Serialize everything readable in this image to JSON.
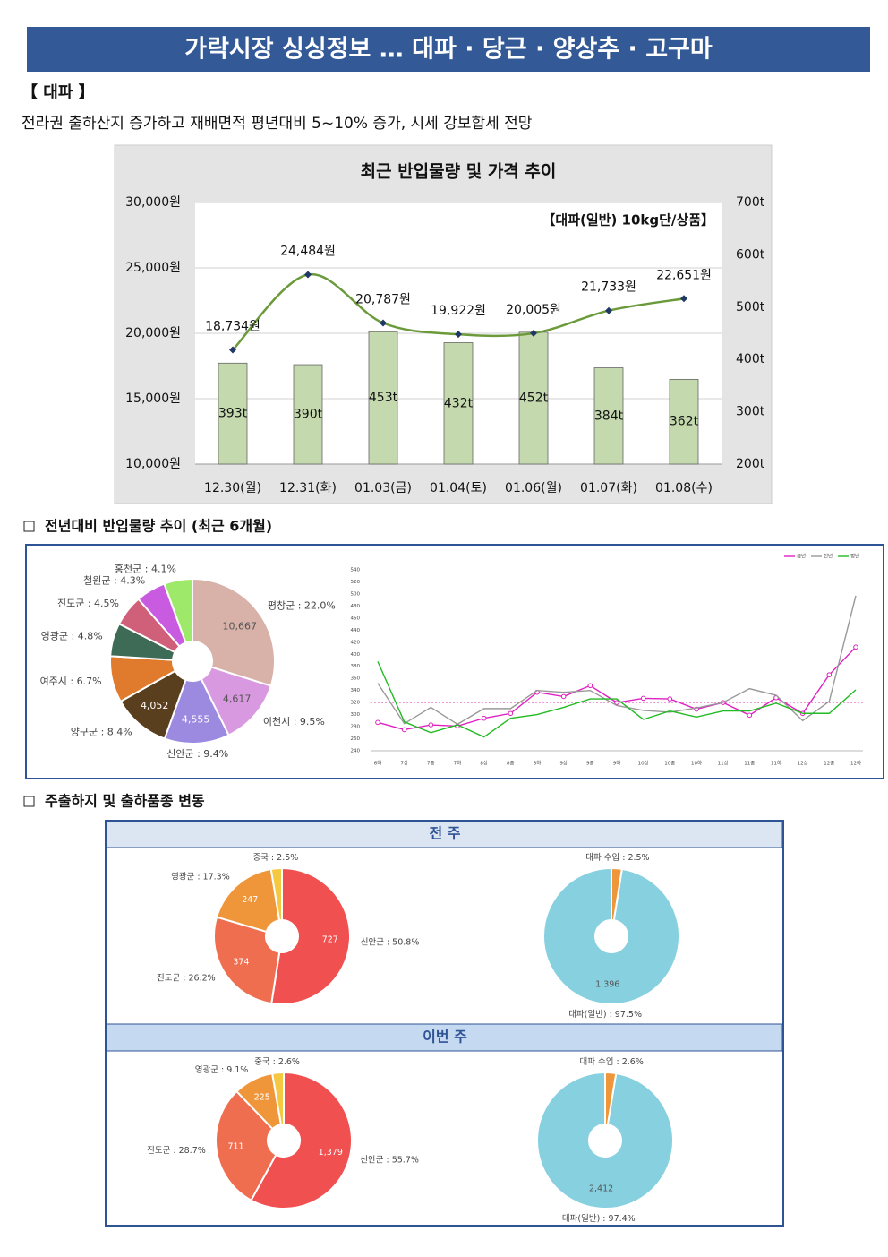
{
  "title": "가락시장 싱싱정보 … 대파 · 당근 · 양상추 · 고구마",
  "section_title": "【 대파 】",
  "summary": "전라권 출하산지 증가하고 재배면적 평년대비 5~10% 증가, 시세 강보합세 전망",
  "subsections": [
    "전년대비 반입물량 추이 (최근 6개월)",
    "주출하지 및 출하품종 변동"
  ],
  "panel_labels": [
    "전 주",
    "이번 주"
  ],
  "chart_data": [
    {
      "type": "combo",
      "title": "최근 반입물량 및 가격 추이",
      "annotation": "【대파(일반) 10kg단/상품】",
      "categories": [
        "12.30(월)",
        "12.31(화)",
        "01.03(금)",
        "01.04(토)",
        "01.06(월)",
        "01.07(화)",
        "01.08(수)"
      ],
      "series": [
        {
          "kind": "bar",
          "axis": "y2",
          "color": "#c4d9ae",
          "values": [
            393,
            390,
            453,
            432,
            452,
            384,
            362
          ],
          "value_labels": [
            "393t",
            "390t",
            "453t",
            "432t",
            "452t",
            "384t",
            "362t"
          ]
        },
        {
          "kind": "line",
          "axis": "y",
          "color": "#6b9a3a",
          "marker_color": "#1f3864",
          "values": [
            18734,
            24484,
            20787,
            19922,
            20005,
            21733,
            22651
          ],
          "value_labels": [
            "18,734원",
            "24,484원",
            "20,787원",
            "19,922원",
            "20,005원",
            "21,733원",
            "22,651원"
          ]
        }
      ],
      "ylim": [
        10000,
        30000
      ],
      "yticks": [
        {
          "value": 10000,
          "label": "10,000원"
        },
        {
          "value": 15000,
          "label": "15,000원"
        },
        {
          "value": 20000,
          "label": "20,000원"
        },
        {
          "value": 25000,
          "label": "25,000원"
        },
        {
          "value": 30000,
          "label": "30,000원"
        }
      ],
      "y2lim": [
        200,
        700
      ],
      "y2ticks": [
        {
          "value": 200,
          "label": "200t"
        },
        {
          "value": 300,
          "label": "300t"
        },
        {
          "value": 400,
          "label": "400t"
        },
        {
          "value": 500,
          "label": "500t"
        },
        {
          "value": 600,
          "label": "600t"
        },
        {
          "value": 700,
          "label": "700t"
        }
      ],
      "grid": true
    },
    {
      "type": "pie",
      "donut": true,
      "labels": [
        "평창군 : 22.0%",
        "이천시 : 9.5%",
        "신안군 : 9.4%",
        "양구군 : 8.4%",
        "여주시 : 6.7%",
        "영광군 : 4.8%",
        "진도군 : 4.5%",
        "철원군 : 4.3%",
        "홍천군 : 4.1%"
      ],
      "values": [
        22.0,
        9.5,
        9.4,
        8.4,
        6.7,
        4.8,
        4.5,
        4.3,
        4.1
      ],
      "counts": [
        10667,
        4617,
        4555,
        4052,
        null,
        null,
        null,
        null,
        null
      ],
      "count_labels": [
        "10,667",
        "4,617",
        "4,555",
        "4,052",
        null,
        null,
        null,
        null,
        null
      ],
      "colors": [
        "#d8b1a8",
        "#d999e0",
        "#9b8ae0",
        "#5a3f1e",
        "#e07a2c",
        "#3d6b55",
        "#d0607a",
        "#c95be0",
        "#9ee86a"
      ]
    },
    {
      "type": "line",
      "categories": [
        "6하",
        "7상",
        "7중",
        "7하",
        "8상",
        "8중",
        "8하",
        "9상",
        "9중",
        "9하",
        "10상",
        "10중",
        "10하",
        "11상",
        "11중",
        "11하",
        "12상",
        "12중",
        "12하"
      ],
      "series": [
        {
          "name": "금년",
          "color": "#e020c0",
          "marker": true,
          "values": [
            287,
            275,
            283,
            281,
            294,
            302,
            337,
            330,
            348,
            320,
            327,
            326,
            309,
            320,
            299,
            328,
            302,
            366,
            412
          ]
        },
        {
          "name": "전년",
          "color": "#999999",
          "values": [
            352,
            285,
            312,
            284,
            310,
            310,
            340,
            337,
            340,
            315,
            307,
            304,
            311,
            320,
            343,
            332,
            290,
            322,
            497
          ]
        },
        {
          "name": "평년",
          "color": "#22bb22",
          "values": [
            388,
            288,
            270,
            283,
            263,
            294,
            300,
            312,
            326,
            326,
            292,
            306,
            296,
            306,
            306,
            319,
            302,
            302,
            341
          ]
        }
      ],
      "reference_line": 320,
      "reference_color": "#e060c0",
      "ylim": [
        240,
        540
      ],
      "yticks": [
        240,
        260,
        280,
        300,
        320,
        340,
        360,
        380,
        400,
        420,
        440,
        460,
        480,
        500,
        520,
        540
      ],
      "legend": "top-right"
    },
    {
      "type": "pie",
      "donut": true,
      "labels": [
        "신안군 : 50.8%",
        "진도군 : 26.2%",
        "영광군 : 17.3%",
        "중국 : 2.5%"
      ],
      "values": [
        50.8,
        26.2,
        17.3,
        2.5
      ],
      "counts": [
        727,
        374,
        247,
        null
      ],
      "colors": [
        "#f0504f",
        "#f06e50",
        "#f0963a",
        "#f5c842"
      ]
    },
    {
      "type": "pie",
      "donut": true,
      "labels": [
        "대파 수입 : 2.5%",
        "대파(일반) : 97.5%"
      ],
      "values": [
        2.5,
        97.5
      ],
      "counts": [
        null,
        1396
      ],
      "count_labels": [
        null,
        "1,396"
      ],
      "colors": [
        "#f0963a",
        "#87d0e0"
      ]
    },
    {
      "type": "pie",
      "donut": true,
      "labels": [
        "신안군 : 55.7%",
        "진도군 : 28.7%",
        "영광군 : 9.1%",
        "중국 : 2.6%"
      ],
      "values": [
        55.7,
        28.7,
        9.1,
        2.6
      ],
      "counts": [
        1379,
        711,
        225,
        null
      ],
      "count_labels": [
        "1,379",
        "711",
        "225",
        null
      ],
      "colors": [
        "#f0504f",
        "#f06e50",
        "#f0963a",
        "#f5c842"
      ]
    },
    {
      "type": "pie",
      "donut": true,
      "labels": [
        "대파 수입 : 2.6%",
        "대파(일반) : 97.4%"
      ],
      "values": [
        2.6,
        97.4
      ],
      "counts": [
        null,
        2412
      ],
      "count_labels": [
        null,
        "2,412"
      ],
      "colors": [
        "#f0963a",
        "#87d0e0"
      ]
    }
  ]
}
